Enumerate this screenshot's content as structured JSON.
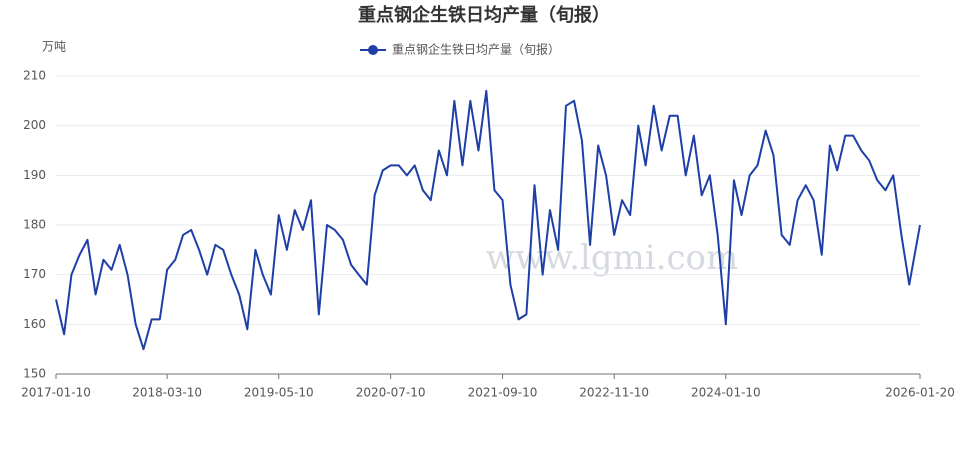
{
  "chart_data": {
    "type": "line",
    "title": "重点钢企生铁日均产量（旬报）",
    "y_label": "万吨",
    "watermark": "www.lgmi.com",
    "x": [
      "2017-01-10",
      "2017-02-10",
      "2017-03-10",
      "2017-04-10",
      "2017-05-10",
      "2017-06-10",
      "2017-07-10",
      "2017-08-10",
      "2017-09-10",
      "2017-10-10",
      "2017-11-10",
      "2017-12-10",
      "2018-01-10",
      "2018-02-10",
      "2018-03-10",
      "2018-04-10",
      "2018-05-10",
      "2018-06-10",
      "2018-07-10",
      "2018-08-10",
      "2018-09-10",
      "2018-10-10",
      "2018-11-10",
      "2018-12-10",
      "2019-01-10",
      "2019-02-10",
      "2019-03-10",
      "2019-04-10",
      "2019-05-10",
      "2019-06-10",
      "2019-07-10",
      "2019-08-10",
      "2019-09-10",
      "2019-10-10",
      "2019-11-10",
      "2019-12-10",
      "2020-01-10",
      "2020-02-10",
      "2020-03-10",
      "2020-04-10",
      "2020-05-10",
      "2020-06-10",
      "2020-07-10",
      "2020-08-10",
      "2020-09-10",
      "2020-10-10",
      "2020-11-10",
      "2020-12-10",
      "2021-01-10",
      "2021-02-10",
      "2021-03-10",
      "2021-04-10",
      "2021-05-10",
      "2021-06-10",
      "2021-07-10",
      "2021-08-10",
      "2021-09-10",
      "2021-10-10",
      "2021-11-10",
      "2021-12-10",
      "2022-01-10",
      "2022-02-10",
      "2022-03-10",
      "2022-04-10",
      "2022-05-10",
      "2022-06-10",
      "2022-07-10",
      "2022-08-10",
      "2022-09-10",
      "2022-10-10",
      "2022-11-10",
      "2022-12-10",
      "2023-01-10",
      "2023-02-10",
      "2023-03-10",
      "2023-04-10",
      "2023-05-10",
      "2023-06-10",
      "2023-07-10",
      "2023-08-10",
      "2023-09-10",
      "2023-10-10",
      "2023-11-10",
      "2023-12-10",
      "2024-01-10",
      "2024-02-10",
      "2024-03-10",
      "2024-04-10",
      "2024-05-10",
      "2024-06-10",
      "2024-07-10",
      "2024-08-10",
      "2024-09-10",
      "2024-10-10",
      "2024-11-10",
      "2024-12-10",
      "2025-01-10",
      "2025-02-10",
      "2025-03-10",
      "2025-04-10",
      "2025-05-10",
      "2025-06-10",
      "2025-07-10",
      "2025-08-10",
      "2025-09-10",
      "2025-10-10",
      "2025-11-10",
      "2025-12-10",
      "2026-01-20"
    ],
    "series": [
      {
        "name": "重点钢企生铁日均产量（旬报）",
        "color": "#1e3fa6",
        "values": [
          165,
          158,
          170,
          174,
          177,
          166,
          173,
          171,
          176,
          170,
          160,
          155,
          161,
          161,
          171,
          173,
          178,
          179,
          175,
          170,
          176,
          175,
          170,
          166,
          159,
          175,
          170,
          166,
          182,
          175,
          183,
          179,
          185,
          162,
          180,
          179,
          177,
          172,
          170,
          168,
          186,
          191,
          192,
          192,
          190,
          192,
          187,
          185,
          195,
          190,
          205,
          192,
          205,
          195,
          207,
          187,
          185,
          168,
          161,
          162,
          188,
          170,
          183,
          175,
          204,
          205,
          197,
          176,
          196,
          190,
          178,
          185,
          182,
          200,
          192,
          204,
          195,
          202,
          202,
          190,
          198,
          186,
          190,
          178,
          160,
          189,
          182,
          190,
          192,
          199,
          194,
          178,
          176,
          185,
          188,
          185,
          174,
          196,
          191,
          198,
          198,
          195,
          193,
          189,
          187,
          190,
          178,
          168,
          180
        ]
      }
    ],
    "ylim": [
      150,
      210
    ],
    "yticks": [
      150,
      160,
      170,
      180,
      190,
      200,
      210
    ],
    "xlim": [
      "2017-01-10",
      "2026-01-20"
    ],
    "xticks": [
      "2017-01-10",
      "2018-03-10",
      "2019-05-10",
      "2020-07-10",
      "2021-09-10",
      "2022-11-10",
      "2024-01-10",
      "2026-01-20"
    ],
    "grid": true
  }
}
